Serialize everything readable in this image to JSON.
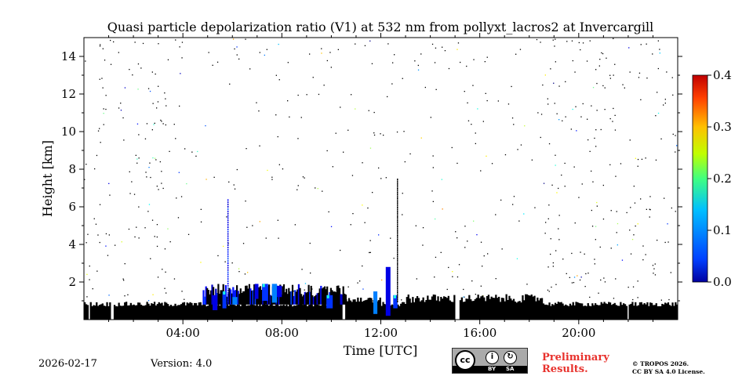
{
  "chart_data": {
    "type": "heatmap",
    "title": "Quasi particle depolarization ratio (V1) at 532 nm from pollyxt_lacros2 at Invercargill",
    "xlabel": "Time [UTC]",
    "ylabel": "Height [km]",
    "xlim": [
      0,
      24
    ],
    "ylim": [
      0,
      15
    ],
    "x_tick_values": [
      4,
      8,
      12,
      16,
      20
    ],
    "x_tick_labels": [
      "04:00",
      "08:00",
      "12:00",
      "16:00",
      "20:00"
    ],
    "y_tick_values": [
      2,
      4,
      6,
      8,
      10,
      12,
      14
    ],
    "y_tick_labels": [
      "2",
      "4",
      "6",
      "8",
      "10",
      "12",
      "14"
    ],
    "colorbar": {
      "min": 0.0,
      "max": 0.4,
      "tick_values": [
        0.0,
        0.1,
        0.2,
        0.3,
        0.4
      ],
      "tick_labels": [
        "0.0",
        "0.1",
        "0.2",
        "0.3",
        "0.4"
      ],
      "colormap": "jet"
    },
    "features": [
      {
        "name": "boundary layer (no-data black)",
        "time_start": 0.0,
        "time_end": 24.0,
        "height_top_km": 0.8
      },
      {
        "name": "low aerosol/cloud layer",
        "time_start": 5.0,
        "time_end": 10.5,
        "height_top_km": 2.0,
        "depol": 0.05
      },
      {
        "name": "elevated feature near noon",
        "time_start": 11.7,
        "time_end": 12.8,
        "height_top_km": 2.8,
        "depol": 0.08
      }
    ]
  },
  "footer": {
    "date": "2026-02-17",
    "version": "Version: 4.0",
    "preliminary_line1": "Preliminary",
    "preliminary_line2": "Results.",
    "copyright_line1": "© TROPOS 2026.",
    "copyright_line2": "CC BY SA 4.0 License.",
    "cc_badge": {
      "cc": "cc",
      "by": "BY",
      "sa": "SA"
    }
  },
  "colors": {
    "no_data": "#000000",
    "background": "#ffffff",
    "preliminary": "#e8322d"
  }
}
